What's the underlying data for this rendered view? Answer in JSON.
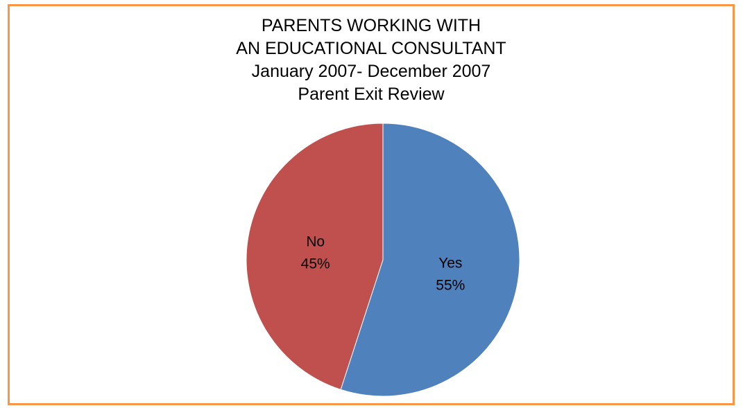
{
  "chart_data": {
    "type": "pie",
    "title_lines": [
      "PARENTS WORKING WITH",
      "AN EDUCATIONAL CONSULTANT",
      "January 2007- December 2007",
      "Parent Exit Review"
    ],
    "categories": [
      "Yes",
      "No"
    ],
    "values": [
      55,
      45
    ],
    "value_labels": [
      "55%",
      "45%"
    ],
    "colors": [
      "#4F81BD",
      "#C0504D"
    ],
    "start_angle": "12 o'clock",
    "direction": "clockwise",
    "legend": "none"
  },
  "frame": {
    "border_color": "#F79646"
  }
}
